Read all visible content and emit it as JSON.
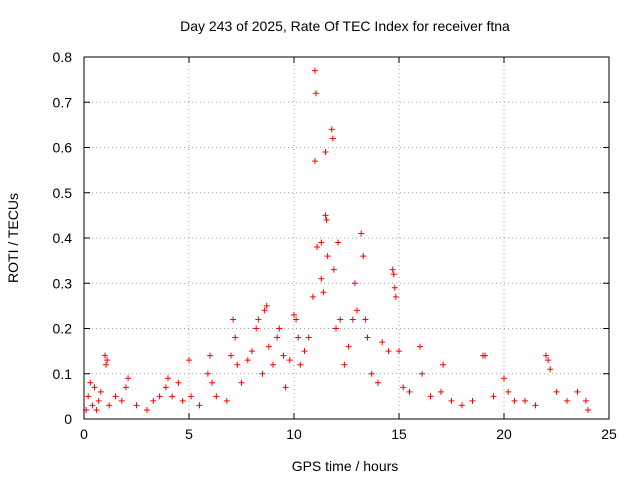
{
  "chart_data": {
    "type": "scatter",
    "title": "Day 243 of 2025, Rate Of TEC Index for receiver ftna",
    "xlabel": "GPS time / hours",
    "ylabel": "ROTI / TECUs",
    "xlim": [
      0,
      25
    ],
    "ylim": [
      0,
      0.8
    ],
    "x_ticks": [
      0,
      5,
      10,
      15,
      20,
      25
    ],
    "y_ticks": [
      0,
      0.1,
      0.2,
      0.3,
      0.4,
      0.5,
      0.6,
      0.7,
      0.8
    ],
    "x_tick_labels": [
      "0",
      "5",
      "10",
      "15",
      "20",
      "25"
    ],
    "y_tick_labels": [
      "0",
      "0.1",
      "0.2",
      "0.3",
      "0.4",
      "0.5",
      "0.6",
      "0.7",
      "0.8"
    ],
    "grid": true,
    "marker": "plus",
    "color": "#ff0000",
    "points": [
      [
        0.1,
        0.02
      ],
      [
        0.2,
        0.05
      ],
      [
        0.3,
        0.08
      ],
      [
        0.4,
        0.03
      ],
      [
        0.5,
        0.07
      ],
      [
        0.6,
        0.02
      ],
      [
        0.7,
        0.04
      ],
      [
        0.8,
        0.06
      ],
      [
        1.0,
        0.14
      ],
      [
        1.05,
        0.12
      ],
      [
        1.1,
        0.13
      ],
      [
        1.2,
        0.03
      ],
      [
        1.5,
        0.05
      ],
      [
        1.8,
        0.04
      ],
      [
        2.0,
        0.07
      ],
      [
        2.1,
        0.09
      ],
      [
        2.5,
        0.03
      ],
      [
        3.0,
        0.02
      ],
      [
        3.3,
        0.04
      ],
      [
        3.6,
        0.05
      ],
      [
        3.9,
        0.07
      ],
      [
        4.0,
        0.09
      ],
      [
        4.2,
        0.05
      ],
      [
        4.5,
        0.08
      ],
      [
        4.7,
        0.04
      ],
      [
        5.0,
        0.13
      ],
      [
        5.1,
        0.05
      ],
      [
        5.5,
        0.03
      ],
      [
        5.9,
        0.1
      ],
      [
        6.0,
        0.14
      ],
      [
        6.1,
        0.08
      ],
      [
        6.3,
        0.05
      ],
      [
        6.8,
        0.04
      ],
      [
        7.0,
        0.14
      ],
      [
        7.1,
        0.22
      ],
      [
        7.2,
        0.18
      ],
      [
        7.3,
        0.12
      ],
      [
        7.5,
        0.08
      ],
      [
        7.8,
        0.13
      ],
      [
        8.0,
        0.15
      ],
      [
        8.2,
        0.2
      ],
      [
        8.3,
        0.22
      ],
      [
        8.5,
        0.1
      ],
      [
        8.6,
        0.24
      ],
      [
        8.7,
        0.25
      ],
      [
        8.8,
        0.16
      ],
      [
        9.0,
        0.12
      ],
      [
        9.2,
        0.18
      ],
      [
        9.3,
        0.2
      ],
      [
        9.5,
        0.14
      ],
      [
        9.6,
        0.07
      ],
      [
        9.8,
        0.13
      ],
      [
        10.0,
        0.23
      ],
      [
        10.1,
        0.22
      ],
      [
        10.2,
        0.18
      ],
      [
        10.3,
        0.12
      ],
      [
        10.5,
        0.15
      ],
      [
        10.7,
        0.18
      ],
      [
        10.9,
        0.27
      ],
      [
        11.0,
        0.77
      ],
      [
        11.05,
        0.72
      ],
      [
        11.0,
        0.57
      ],
      [
        11.1,
        0.38
      ],
      [
        11.3,
        0.39
      ],
      [
        11.3,
        0.31
      ],
      [
        11.4,
        0.28
      ],
      [
        11.5,
        0.45
      ],
      [
        11.55,
        0.44
      ],
      [
        11.5,
        0.59
      ],
      [
        11.6,
        0.36
      ],
      [
        11.8,
        0.64
      ],
      [
        11.85,
        0.62
      ],
      [
        11.9,
        0.33
      ],
      [
        12.0,
        0.2
      ],
      [
        12.1,
        0.39
      ],
      [
        12.2,
        0.22
      ],
      [
        12.4,
        0.12
      ],
      [
        12.6,
        0.16
      ],
      [
        12.8,
        0.22
      ],
      [
        12.9,
        0.3
      ],
      [
        13.0,
        0.24
      ],
      [
        13.2,
        0.41
      ],
      [
        13.3,
        0.36
      ],
      [
        13.4,
        0.22
      ],
      [
        13.5,
        0.18
      ],
      [
        13.7,
        0.1
      ],
      [
        14.0,
        0.08
      ],
      [
        14.2,
        0.17
      ],
      [
        14.5,
        0.15
      ],
      [
        14.7,
        0.33
      ],
      [
        14.75,
        0.32
      ],
      [
        14.8,
        0.29
      ],
      [
        14.85,
        0.27
      ],
      [
        15.0,
        0.15
      ],
      [
        15.2,
        0.07
      ],
      [
        15.5,
        0.06
      ],
      [
        16.0,
        0.16
      ],
      [
        16.1,
        0.1
      ],
      [
        16.5,
        0.05
      ],
      [
        17.0,
        0.06
      ],
      [
        17.1,
        0.12
      ],
      [
        17.5,
        0.04
      ],
      [
        18.0,
        0.03
      ],
      [
        18.5,
        0.04
      ],
      [
        19.0,
        0.14
      ],
      [
        19.1,
        0.14
      ],
      [
        19.5,
        0.05
      ],
      [
        20.0,
        0.09
      ],
      [
        20.2,
        0.06
      ],
      [
        20.5,
        0.04
      ],
      [
        21.0,
        0.04
      ],
      [
        21.5,
        0.03
      ],
      [
        22.0,
        0.14
      ],
      [
        22.1,
        0.13
      ],
      [
        22.2,
        0.11
      ],
      [
        22.5,
        0.06
      ],
      [
        23.0,
        0.04
      ],
      [
        23.5,
        0.06
      ],
      [
        23.9,
        0.04
      ],
      [
        24.0,
        0.02
      ]
    ]
  }
}
